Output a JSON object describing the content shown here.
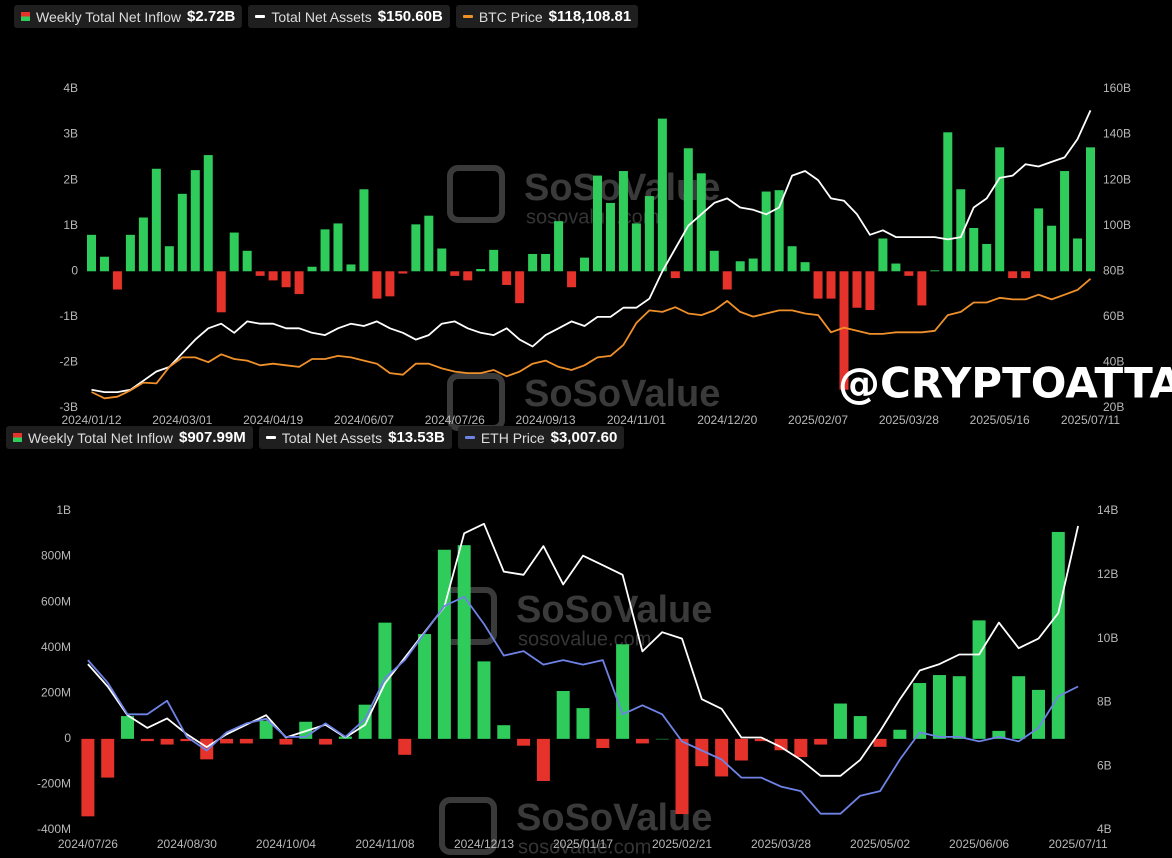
{
  "chart_data": [
    {
      "type": "combo",
      "categories": [
        "2024/01/12",
        null,
        null,
        null,
        null,
        null,
        null,
        "2024/03/01",
        null,
        null,
        null,
        null,
        null,
        null,
        "2024/04/19",
        null,
        null,
        null,
        null,
        null,
        null,
        "2024/06/07",
        null,
        null,
        null,
        null,
        null,
        null,
        "2024/07/26",
        null,
        null,
        null,
        null,
        null,
        null,
        "2024/09/13",
        null,
        null,
        null,
        null,
        null,
        null,
        "2024/11/01",
        null,
        null,
        null,
        null,
        null,
        null,
        "2024/12/20",
        null,
        null,
        null,
        null,
        null,
        null,
        "2025/02/07",
        null,
        null,
        null,
        null,
        null,
        null,
        "2025/03/28",
        null,
        null,
        null,
        null,
        null,
        null,
        "2025/05/16",
        null,
        null,
        null,
        null,
        null,
        null,
        "2025/07/11"
      ],
      "series": [
        {
          "name": "Weekly Total Net Inflow",
          "type": "bar",
          "colors": {
            "positive": "#2fcc5b",
            "negative": "#e5332b"
          },
          "legend_value": "$2.72B",
          "values": [
            0.8,
            0.32,
            -0.4,
            0.8,
            1.18,
            2.25,
            0.55,
            1.7,
            2.22,
            2.55,
            -0.9,
            0.85,
            0.45,
            -0.1,
            -0.2,
            -0.35,
            -0.5,
            0.1,
            0.92,
            1.05,
            0.15,
            1.8,
            -0.6,
            -0.55,
            -0.05,
            1.03,
            1.22,
            0.5,
            -0.1,
            -0.2,
            0.05,
            0.47,
            -0.3,
            -0.7,
            0.38,
            0.38,
            1.1,
            -0.35,
            0.3,
            2.1,
            1.5,
            2.2,
            1.05,
            1.65,
            3.35,
            -0.15,
            2.7,
            2.15,
            0.45,
            -0.4,
            0.22,
            0.28,
            1.75,
            1.78,
            0.55,
            0.2,
            -0.6,
            -0.6,
            -2.6,
            -0.8,
            -0.85,
            0.72,
            0.17,
            -0.1,
            -0.75,
            0.02,
            3.05,
            1.8,
            0.95,
            0.6,
            2.72,
            -0.15,
            -0.15,
            1.38,
            1.0,
            2.2,
            0.72,
            2.72
          ]
        },
        {
          "name": "Total Net Assets",
          "type": "line",
          "axis": "y2",
          "color": "#ffffff",
          "legend_value": "$150.60B",
          "values": [
            28,
            27,
            27,
            28,
            32,
            36,
            38,
            44,
            50,
            55,
            57,
            53,
            58,
            57,
            57,
            55,
            55,
            53,
            52,
            55,
            57,
            56,
            58,
            55,
            53,
            50,
            52,
            57,
            58,
            55,
            53,
            52,
            55,
            50,
            47,
            52,
            55,
            58,
            56,
            60,
            60,
            64,
            64,
            68,
            80,
            90,
            100,
            105,
            110,
            112,
            108,
            107,
            105,
            108,
            122,
            124,
            120,
            112,
            111,
            105,
            96,
            98,
            95,
            95,
            95,
            95,
            94,
            95,
            108,
            112,
            121,
            122,
            127,
            126,
            128,
            130,
            138,
            150.6
          ]
        },
        {
          "name": "BTC Price",
          "type": "line",
          "axis": "y3",
          "color": "#f0902a",
          "legend_value": "$118,108.81",
          "values": [
            46000,
            42000,
            43000,
            47000,
            52000,
            51500,
            62000,
            68000,
            68000,
            65000,
            70000,
            67000,
            66000,
            63000,
            64000,
            63000,
            62000,
            67000,
            67000,
            69000,
            68000,
            66000,
            64000,
            58000,
            57000,
            64000,
            64000,
            61000,
            59000,
            58000,
            58000,
            60000,
            56000,
            59000,
            64000,
            66000,
            62000,
            60000,
            63000,
            68000,
            69000,
            76000,
            90000,
            98000,
            97000,
            100000,
            96000,
            95000,
            98000,
            104000,
            97000,
            94000,
            96000,
            98000,
            98000,
            96000,
            95000,
            84000,
            87000,
            85000,
            83000,
            83000,
            84000,
            84000,
            84000,
            85000,
            95000,
            97000,
            103000,
            103000,
            106000,
            105000,
            105000,
            108000,
            105000,
            108000,
            111000,
            118108.81
          ]
        }
      ],
      "ylim": [
        -3,
        4
      ],
      "yticks": [
        {
          "value": 4,
          "label": "4B"
        },
        {
          "value": 3,
          "label": "3B"
        },
        {
          "value": 2,
          "label": "2B"
        },
        {
          "value": 1,
          "label": "1B"
        },
        0,
        {
          "value": -1,
          "label": "-1B"
        },
        {
          "value": -2,
          "label": "-2B"
        },
        {
          "value": -3,
          "label": "-3B"
        }
      ],
      "y2lim": [
        20,
        160
      ],
      "y2ticks": [
        {
          "value": 160,
          "label": "160B"
        },
        {
          "value": 140,
          "label": "140B"
        },
        {
          "value": 120,
          "label": "120B"
        },
        {
          "value": 100,
          "label": "100B"
        },
        {
          "value": 80,
          "label": "80B"
        },
        {
          "value": 60,
          "label": "60B"
        },
        {
          "value": 40,
          "label": "40B"
        },
        {
          "value": 20,
          "label": "20B"
        }
      ],
      "y3lim": [
        35800,
        239000
      ]
    },
    {
      "type": "combo",
      "categories": [
        "2024/07/26",
        null,
        null,
        null,
        null,
        "2024/08/30",
        null,
        null,
        null,
        null,
        "2024/10/04",
        null,
        null,
        null,
        null,
        "2024/11/08",
        null,
        null,
        null,
        null,
        "2024/12/13",
        null,
        null,
        null,
        null,
        "2025/01/17",
        null,
        null,
        null,
        null,
        "2025/02/21",
        null,
        null,
        null,
        null,
        "2025/03/28",
        null,
        null,
        null,
        null,
        "2025/05/02",
        null,
        null,
        null,
        null,
        "2025/06/06",
        null,
        null,
        null,
        null,
        "2025/07/11"
      ],
      "series": [
        {
          "name": "Weekly Total Net Inflow",
          "type": "bar",
          "colors": {
            "positive": "#2fcc5b",
            "negative": "#e5332b"
          },
          "legend_value": "$907.99M",
          "values": [
            -340,
            -170,
            100,
            -10,
            -25,
            -10,
            -90,
            -20,
            -20,
            80,
            -25,
            75,
            -25,
            10,
            150,
            510,
            -70,
            460,
            830,
            850,
            340,
            60,
            -30,
            -185,
            210,
            135,
            -40,
            415,
            -20,
            0,
            -330,
            -120,
            -165,
            -95,
            -10,
            -50,
            -80,
            -25,
            155,
            100,
            -35,
            40,
            245,
            280,
            275,
            520,
            35,
            275,
            215,
            907.99,
            null
          ]
        },
        {
          "name": "Total Net Assets",
          "type": "line",
          "axis": "y2",
          "color": "#ffffff",
          "legend_value": "$13.53B",
          "values": [
            9.2,
            8.5,
            7.6,
            7.2,
            7.5,
            7.0,
            6.6,
            7.0,
            7.3,
            7.6,
            6.9,
            7.1,
            7.3,
            6.9,
            7.3,
            8.6,
            9.4,
            10.2,
            11.0,
            13.3,
            13.6,
            12.1,
            12.0,
            12.9,
            11.7,
            12.6,
            12.3,
            12.0,
            9.6,
            10.2,
            10.0,
            8.1,
            7.8,
            6.9,
            6.9,
            6.6,
            6.2,
            5.7,
            5.7,
            6.2,
            7.1,
            8.1,
            9.0,
            9.2,
            9.5,
            9.5,
            10.5,
            9.7,
            10.0,
            10.8,
            13.53
          ]
        },
        {
          "name": "ETH Price",
          "type": "line",
          "axis": "y3",
          "color": "#6f83e6",
          "legend_value": "$3,007.60",
          "values": [
            3300,
            3050,
            2700,
            2700,
            2850,
            2450,
            2300,
            2500,
            2600,
            2650,
            2450,
            2450,
            2600,
            2450,
            2650,
            3100,
            3300,
            3600,
            3900,
            4000,
            3700,
            3350,
            3400,
            3250,
            3300,
            3250,
            3300,
            2700,
            2800,
            2700,
            2400,
            2300,
            2200,
            2000,
            2000,
            1900,
            1850,
            1600,
            1600,
            1800,
            1850,
            2200,
            2500,
            2450,
            2450,
            2400,
            2450,
            2400,
            2550,
            2900,
            3007.6
          ]
        }
      ],
      "ylim": [
        -400,
        1000
      ],
      "yticks": [
        {
          "value": 1000,
          "label": "1B"
        },
        {
          "value": 800,
          "label": "800M"
        },
        {
          "value": 600,
          "label": "600M"
        },
        {
          "value": 400,
          "label": "400M"
        },
        {
          "value": 200,
          "label": "200M"
        },
        0,
        {
          "value": -200,
          "label": "-200M"
        },
        {
          "value": -400,
          "label": "-400M"
        }
      ],
      "y2lim": [
        4,
        14
      ],
      "y2ticks": [
        {
          "value": 14,
          "label": "14B"
        },
        {
          "value": 12,
          "label": "12B"
        },
        {
          "value": 10,
          "label": "10B"
        },
        {
          "value": 8,
          "label": "8B"
        },
        {
          "value": 6,
          "label": "6B"
        },
        {
          "value": 4,
          "label": "4B"
        }
      ],
      "y3lim": [
        1420,
        4950
      ]
    }
  ],
  "watermarks": [
    "SoSoValue",
    "sosovalue.com",
    "@CRYPTOATTACK"
  ]
}
